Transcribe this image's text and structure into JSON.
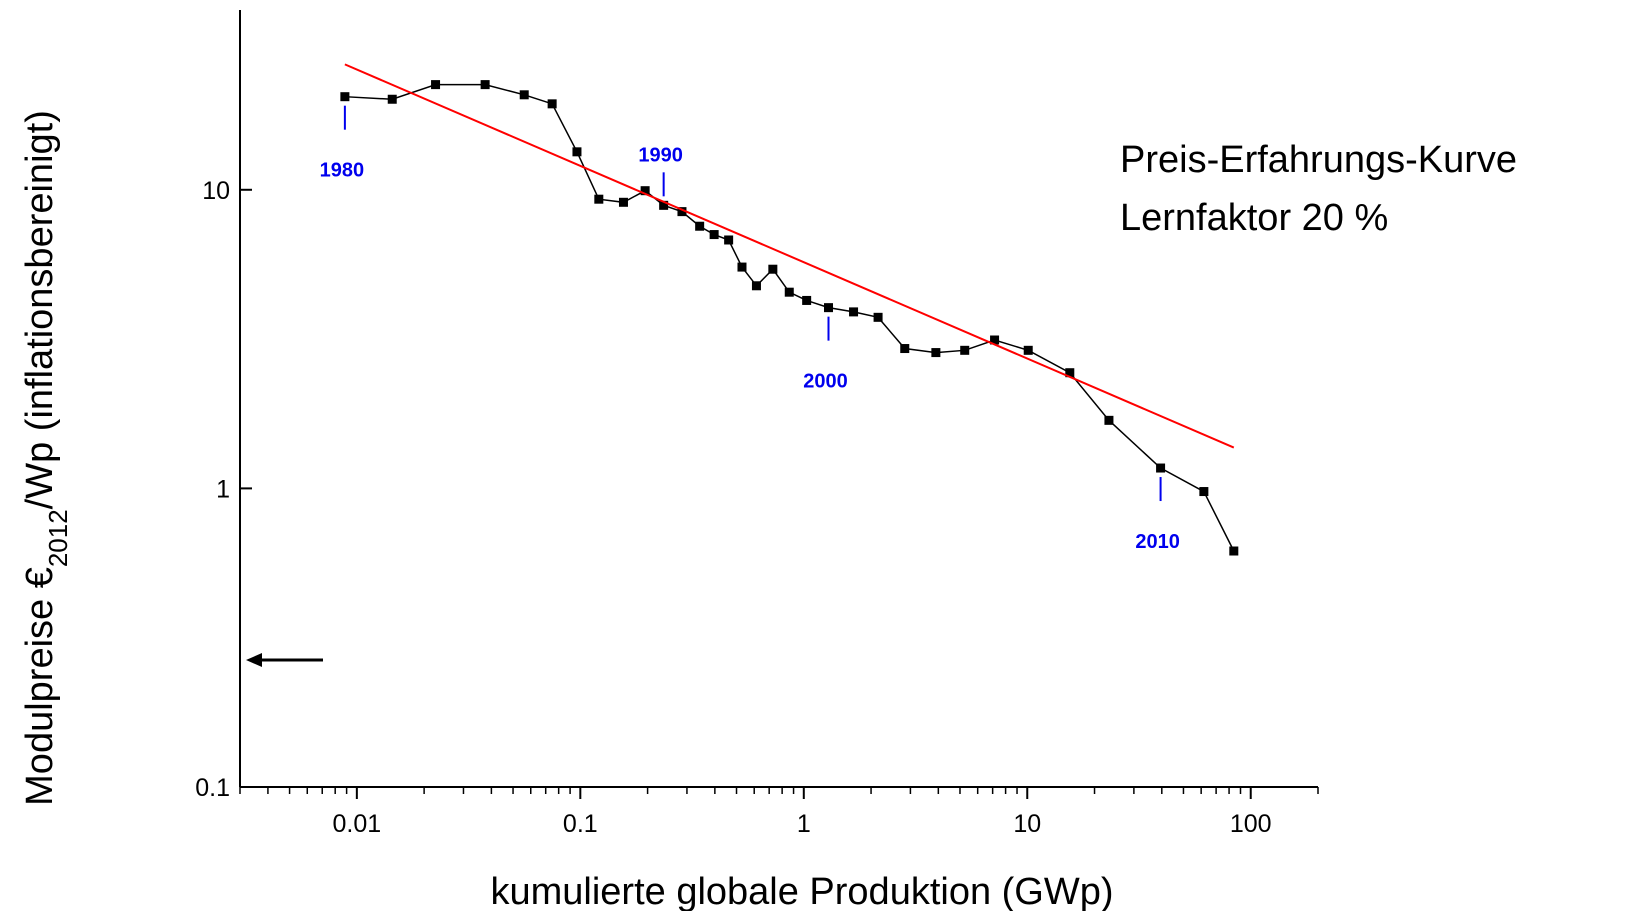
{
  "chart_data": {
    "type": "line",
    "xlabel": "kumulierte globale Produktion (GWp)",
    "ylabel": [
      "Modulpreise €",
      "2012",
      "/Wp (inflationsbereinigt)"
    ],
    "annotations": [
      "Preis-Erfahrungs-Kurve",
      "Lernfaktor 20 %"
    ],
    "year_labels": [
      "1980",
      "1990",
      "2000",
      "2010"
    ],
    "xlog": true,
    "ylog": true,
    "xlim": [
      0.003,
      200
    ],
    "ylim": [
      0.1,
      40
    ],
    "xticks": [
      0.01,
      0.1,
      1,
      10,
      100
    ],
    "xminorticks": [
      0.003,
      0.004,
      0.005,
      0.006,
      0.007,
      0.008,
      0.009,
      0.02,
      0.03,
      0.04,
      0.05,
      0.06,
      0.07,
      0.08,
      0.09,
      0.2,
      0.3,
      0.4,
      0.5,
      0.6,
      0.7,
      0.8,
      0.9,
      2,
      3,
      4,
      5,
      6,
      7,
      8,
      9,
      20,
      30,
      40,
      50,
      60,
      70,
      80,
      90,
      200
    ],
    "yticks": [
      0.1,
      1,
      10
    ],
    "series": [
      {
        "color": "#000000",
        "markers": true,
        "x": [
          0.00884,
          0.0144,
          0.0225,
          0.0375,
          0.0561,
          0.0748,
          0.0966,
          0.121,
          0.156,
          0.195,
          0.236,
          0.285,
          0.342,
          0.397,
          0.461,
          0.529,
          0.614,
          0.727,
          0.861,
          1.03,
          1.29,
          1.67,
          2.15,
          2.83,
          3.9,
          5.25,
          7.14,
          10.1,
          15.5,
          23.2,
          39.5,
          61.7,
          84.0
        ],
        "values": [
          20.5,
          20.1,
          22.5,
          22.5,
          20.8,
          19.4,
          13.4,
          9.3,
          9.08,
          9.93,
          8.87,
          8.45,
          7.55,
          7.08,
          6.79,
          5.51,
          4.77,
          5.42,
          4.54,
          4.26,
          4.03,
          3.9,
          3.74,
          2.94,
          2.85,
          2.9,
          3.14,
          2.9,
          2.44,
          1.69,
          1.17,
          0.976,
          0.617
        ]
      },
      {
        "color": "#ff0000",
        "markers": false,
        "x": [
          0.00884,
          84.0
        ],
        "values": [
          26.3,
          1.37
        ]
      }
    ]
  }
}
